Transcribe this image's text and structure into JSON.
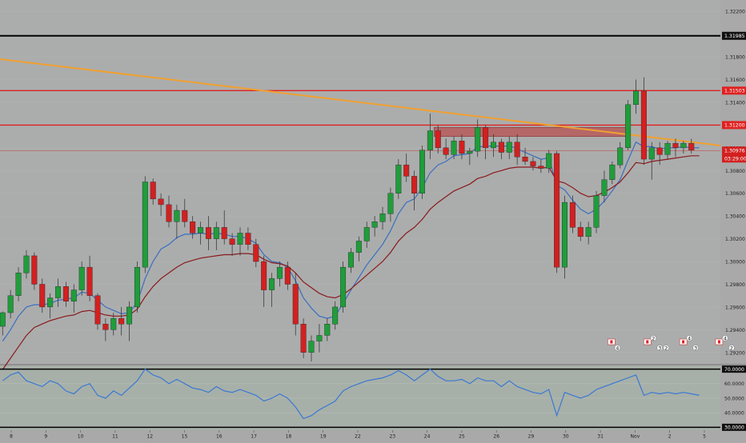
{
  "colors": {
    "background": "#a9a9a9",
    "price_panel_bg": "#abadad",
    "osc_panel_bg": "#a7b0a8",
    "bull": "#1f9d3a",
    "bear": "#d32020",
    "ma_fast": "#3a6fbf",
    "ma_slow": "#8b1a1a",
    "trendline": "#f0a030",
    "resistance": "#e02020",
    "key_level": "#000000",
    "zone": "#b85050",
    "osc_line": "#3a78d4",
    "current_price_tag": "#d32020"
  },
  "chart_data": [
    {
      "type": "candlestick",
      "title": "",
      "x_ticks": [
        "8",
        "9",
        "10",
        "11",
        "12",
        "15",
        "16",
        "17",
        "18",
        "19",
        "22",
        "23",
        "24",
        "25",
        "26",
        "29",
        "30",
        "31",
        "Nov",
        "2",
        "5"
      ],
      "y_ticks": [
        "1.32200",
        "1.31800",
        "1.31600",
        "1.31400",
        "1.31000",
        "1.30800",
        "1.30600",
        "1.30400",
        "1.30200",
        "1.30000",
        "1.29800",
        "1.29600",
        "1.29400",
        "1.29200"
      ],
      "y_tick_values": [
        1.322,
        1.318,
        1.316,
        1.314,
        1.31,
        1.308,
        1.306,
        1.304,
        1.302,
        1.3,
        1.298,
        1.296,
        1.294,
        1.292
      ],
      "ylim": [
        1.291,
        1.323
      ],
      "x_range": [
        0,
        118
      ],
      "candles": [
        [
          1.2943,
          1.2956,
          1.2935,
          1.2955
        ],
        [
          1.2955,
          1.2975,
          1.295,
          1.297
        ],
        [
          1.297,
          1.2995,
          1.2965,
          1.299
        ],
        [
          1.299,
          1.301,
          1.2985,
          1.3005
        ],
        [
          1.3005,
          1.3008,
          1.2975,
          1.298
        ],
        [
          1.298,
          1.2985,
          1.2955,
          1.296
        ],
        [
          1.296,
          1.2972,
          1.295,
          1.2968
        ],
        [
          1.2968,
          1.2985,
          1.296,
          1.2978
        ],
        [
          1.2978,
          1.2982,
          1.296,
          1.2965
        ],
        [
          1.2965,
          1.298,
          1.2955,
          1.2975
        ],
        [
          1.2975,
          1.3,
          1.297,
          1.2995
        ],
        [
          1.2995,
          1.3005,
          1.2965,
          1.297
        ],
        [
          1.297,
          1.2972,
          1.294,
          1.2945
        ],
        [
          1.2945,
          1.295,
          1.293,
          1.294
        ],
        [
          1.294,
          1.2955,
          1.2935,
          1.295
        ],
        [
          1.295,
          1.296,
          1.2935,
          1.2945
        ],
        [
          1.2945,
          1.2965,
          1.293,
          1.296
        ],
        [
          1.296,
          1.3,
          1.2955,
          1.2995
        ],
        [
          1.2995,
          1.3075,
          1.299,
          1.307
        ],
        [
          1.307,
          1.3073,
          1.305,
          1.3055
        ],
        [
          1.3055,
          1.306,
          1.304,
          1.305
        ],
        [
          1.305,
          1.3058,
          1.303,
          1.3035
        ],
        [
          1.3035,
          1.305,
          1.302,
          1.3045
        ],
        [
          1.3045,
          1.3055,
          1.303,
          1.3035
        ],
        [
          1.3035,
          1.304,
          1.302,
          1.3025
        ],
        [
          1.3025,
          1.3035,
          1.3015,
          1.303
        ],
        [
          1.303,
          1.304,
          1.301,
          1.302
        ],
        [
          1.302,
          1.3035,
          1.301,
          1.303
        ],
        [
          1.303,
          1.3045,
          1.3015,
          1.302
        ],
        [
          1.302,
          1.3025,
          1.3005,
          1.3015
        ],
        [
          1.3015,
          1.303,
          1.3005,
          1.3025
        ],
        [
          1.3025,
          1.303,
          1.301,
          1.3015
        ],
        [
          1.3015,
          1.302,
          1.2995,
          1.3
        ],
        [
          1.3,
          1.3005,
          1.296,
          1.2975
        ],
        [
          1.2975,
          1.299,
          1.296,
          1.2985
        ],
        [
          1.2985,
          1.3,
          1.2978,
          1.2995
        ],
        [
          1.2995,
          1.3,
          1.2975,
          1.298
        ],
        [
          1.298,
          1.299,
          1.2935,
          1.2945
        ],
        [
          1.2945,
          1.295,
          1.2915,
          1.292
        ],
        [
          1.292,
          1.2935,
          1.2912,
          1.293
        ],
        [
          1.293,
          1.2945,
          1.292,
          1.2935
        ],
        [
          1.2935,
          1.295,
          1.293,
          1.2945
        ],
        [
          1.2945,
          1.2965,
          1.294,
          1.296
        ],
        [
          1.296,
          1.3,
          1.2955,
          1.2995
        ],
        [
          1.2995,
          1.3012,
          1.299,
          1.3008
        ],
        [
          1.3008,
          1.3022,
          1.3,
          1.3018
        ],
        [
          1.3018,
          1.3035,
          1.3012,
          1.303
        ],
        [
          1.303,
          1.304,
          1.3022,
          1.3035
        ],
        [
          1.3035,
          1.3048,
          1.3028,
          1.3042
        ],
        [
          1.3042,
          1.3065,
          1.3035,
          1.306
        ],
        [
          1.306,
          1.309,
          1.3055,
          1.3085
        ],
        [
          1.3085,
          1.3095,
          1.307,
          1.3075
        ],
        [
          1.3075,
          1.308,
          1.3045,
          1.306
        ],
        [
          1.306,
          1.3102,
          1.3055,
          1.3098
        ],
        [
          1.3098,
          1.313,
          1.309,
          1.3115
        ],
        [
          1.3115,
          1.312,
          1.3095,
          1.31
        ],
        [
          1.31,
          1.3108,
          1.309,
          1.3094
        ],
        [
          1.3094,
          1.311,
          1.309,
          1.3106
        ],
        [
          1.3106,
          1.3112,
          1.309,
          1.3095
        ],
        [
          1.3095,
          1.31,
          1.3085,
          1.3097
        ],
        [
          1.3097,
          1.3125,
          1.3092,
          1.3118
        ],
        [
          1.3118,
          1.312,
          1.309,
          1.31
        ],
        [
          1.31,
          1.3112,
          1.3092,
          1.3105
        ],
        [
          1.3105,
          1.3108,
          1.309,
          1.3096
        ],
        [
          1.3096,
          1.311,
          1.309,
          1.3105
        ],
        [
          1.3105,
          1.3112,
          1.3085,
          1.3092
        ],
        [
          1.3092,
          1.31,
          1.3085,
          1.3088
        ],
        [
          1.3088,
          1.3092,
          1.308,
          1.3084
        ],
        [
          1.3084,
          1.309,
          1.3078,
          1.3082
        ],
        [
          1.3082,
          1.3098,
          1.3078,
          1.3095
        ],
        [
          1.3095,
          1.3097,
          1.299,
          1.2995
        ],
        [
          1.2995,
          1.3058,
          1.2985,
          1.3052
        ],
        [
          1.3052,
          1.3058,
          1.3025,
          1.303
        ],
        [
          1.303,
          1.3035,
          1.3018,
          1.3022
        ],
        [
          1.3022,
          1.3035,
          1.3015,
          1.303
        ],
        [
          1.303,
          1.3062,
          1.3025,
          1.3058
        ],
        [
          1.3058,
          1.308,
          1.3052,
          1.3072
        ],
        [
          1.3072,
          1.3088,
          1.3068,
          1.3085
        ],
        [
          1.3085,
          1.3105,
          1.3082,
          1.31
        ],
        [
          1.31,
          1.3142,
          1.3098,
          1.3138
        ],
        [
          1.3138,
          1.316,
          1.313,
          1.315
        ],
        [
          1.315,
          1.3162,
          1.3085,
          1.309
        ],
        [
          1.309,
          1.3105,
          1.3072,
          1.31
        ],
        [
          1.31,
          1.3105,
          1.3085,
          1.3094
        ],
        [
          1.3094,
          1.3106,
          1.309,
          1.3104
        ],
        [
          1.3104,
          1.3108,
          1.3092,
          1.31
        ],
        [
          1.31,
          1.3106,
          1.3095,
          1.3104
        ],
        [
          1.3104,
          1.3108,
          1.3095,
          1.3098
        ]
      ],
      "candle_x": [
        1,
        4,
        7,
        10,
        13,
        16,
        19,
        22,
        25,
        28,
        31,
        34,
        37,
        40,
        43,
        46,
        49,
        52,
        55,
        58,
        61,
        64,
        67,
        70,
        73,
        76,
        79,
        82,
        85,
        88,
        91,
        94,
        97,
        100,
        103,
        106,
        109,
        112,
        115,
        118,
        121,
        124,
        127,
        130,
        133,
        136,
        139,
        142,
        145,
        148,
        151,
        154,
        157,
        160,
        163,
        166,
        169,
        172,
        175,
        178,
        181,
        184,
        187,
        190,
        193,
        196,
        199,
        202,
        205,
        208,
        211,
        214,
        217,
        220,
        223,
        226,
        229,
        232,
        235,
        238,
        241,
        244,
        247,
        250,
        253,
        256,
        259,
        262,
        265
      ],
      "series": [
        {
          "values": [
            1.293,
            1.294,
            1.2952,
            1.296,
            1.2962,
            1.2962,
            1.2963,
            1.2966,
            1.2967,
            1.2968,
            1.2973,
            1.2972,
            1.2966,
            1.296,
            1.2957,
            1.2954,
            1.2955,
            1.2964,
            1.2985,
            1.3,
            1.3011,
            1.3015,
            1.3021,
            1.3024,
            1.3024,
            1.3025,
            1.3024,
            1.3025,
            1.3024,
            1.3022,
            1.3022,
            1.302,
            1.3016,
            1.3006,
            1.3,
            1.2999,
            1.2995,
            1.2983,
            1.2968,
            1.2959,
            1.2952,
            1.295,
            1.2952,
            1.2963,
            1.2975,
            1.2986,
            1.2997,
            1.3006,
            1.3015,
            1.3027,
            1.3042,
            1.3052,
            1.3055,
            1.3065,
            1.3078,
            1.3085,
            1.3088,
            1.3093,
            1.3094,
            1.3095,
            1.3101,
            1.3101,
            1.3102,
            1.3101,
            1.3102,
            1.3099,
            1.3096,
            1.3093,
            1.309,
            1.3091,
            1.3067,
            1.3063,
            1.3054,
            1.3046,
            1.3042,
            1.3046,
            1.3053,
            1.3062,
            1.3072,
            1.3089,
            1.3105,
            1.3101,
            1.3101,
            1.3099,
            1.31,
            1.31,
            1.3101,
            1.31,
            1.31
          ]
        },
        {
          "values": [
            1.2905,
            1.2915,
            1.2925,
            1.2935,
            1.2942,
            1.2945,
            1.2948,
            1.295,
            1.2952,
            1.2953,
            1.2956,
            1.2957,
            1.2955,
            1.2953,
            1.2952,
            1.2952,
            1.2953,
            1.2958,
            1.2969,
            1.2978,
            1.2985,
            1.299,
            1.2995,
            1.2999,
            1.3001,
            1.3003,
            1.3004,
            1.3005,
            1.3006,
            1.3006,
            1.3007,
            1.3007,
            1.3006,
            1.3002,
            1.2999,
            1.2998,
            1.2996,
            1.299,
            1.2982,
            1.2977,
            1.2972,
            1.2969,
            1.2968,
            1.2971,
            1.2976,
            1.2982,
            1.2988,
            1.2994,
            1.3,
            1.3008,
            1.3018,
            1.3025,
            1.303,
            1.3037,
            1.3046,
            1.3052,
            1.3057,
            1.3062,
            1.3065,
            1.3068,
            1.3073,
            1.3075,
            1.3078,
            1.308,
            1.3082,
            1.3083,
            1.3083,
            1.3083,
            1.3082,
            1.3083,
            1.3071,
            1.3069,
            1.3065,
            1.306,
            1.3057,
            1.3058,
            1.3061,
            1.3065,
            1.307,
            1.3078,
            1.3087,
            1.3086,
            1.3088,
            1.3089,
            1.309,
            1.3091,
            1.3092,
            1.3093,
            1.3093
          ]
        }
      ],
      "horizontal_levels": [
        {
          "value": 1.31985,
          "label": "1.31985",
          "kind": "key"
        },
        {
          "value": 1.31503,
          "label": "1.31503",
          "kind": "resistance"
        },
        {
          "value": 1.312,
          "label": "1.31200",
          "kind": "resistance"
        }
      ],
      "current_price": {
        "value": 1.30976,
        "label": "1.30976",
        "countdown": "03:29:00"
      },
      "trendline": {
        "from": [
          0,
          1.3178
        ],
        "to": [
          118,
          1.3102
        ]
      },
      "zone": {
        "x_from": 79,
        "x_to": 114,
        "y_low": 1.311,
        "y_high": 1.3118
      },
      "event_markers": [
        {
          "x": 102,
          "labels": [
            "4"
          ]
        },
        {
          "x": 108,
          "labels": [
            "2",
            "3",
            "2"
          ]
        },
        {
          "x": 114,
          "labels": [
            "4",
            "3"
          ]
        },
        {
          "x": 120,
          "labels": [
            "4",
            "2"
          ]
        }
      ]
    },
    {
      "type": "line",
      "title": "",
      "y_ticks": [
        "70.0000",
        "60.0000",
        "50.0000",
        "40.0000",
        "30.0000"
      ],
      "y_tick_values": [
        70,
        60,
        50,
        40,
        30
      ],
      "ylim": [
        28,
        72
      ],
      "series": [
        {
          "values": [
            62,
            66,
            68,
            62,
            60,
            58,
            62,
            60,
            55,
            53,
            58,
            60,
            52,
            50,
            55,
            52,
            57,
            62,
            70,
            66,
            64,
            60,
            63,
            60,
            57,
            56,
            54,
            58,
            55,
            54,
            56,
            54,
            52,
            48,
            50,
            53,
            50,
            44,
            36,
            38,
            42,
            45,
            48,
            55,
            58,
            60,
            62,
            63,
            64,
            66,
            69,
            66,
            62,
            66,
            70,
            65,
            62,
            62,
            63,
            60,
            64,
            62,
            62,
            58,
            62,
            58,
            56,
            54,
            53,
            56,
            38,
            54,
            52,
            50,
            52,
            56,
            58,
            60,
            62,
            64,
            66,
            52,
            54,
            53,
            54,
            53,
            54,
            53,
            52
          ]
        }
      ]
    }
  ]
}
